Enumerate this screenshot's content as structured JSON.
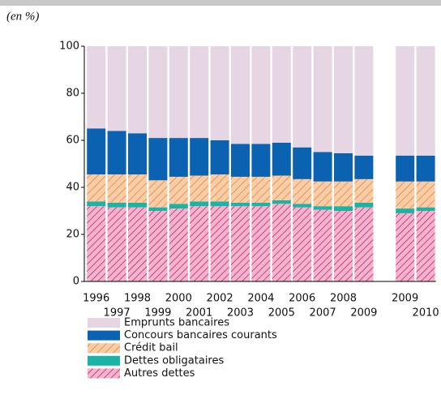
{
  "chart_data": {
    "type": "stacked_bar",
    "subtitle": "(en %)",
    "categories": [
      "1996",
      "1997",
      "1998",
      "1999",
      "2000",
      "2001",
      "2002",
      "2003",
      "2004",
      "2005",
      "2006",
      "2007",
      "2008",
      "2009",
      null,
      "2009",
      "2010"
    ],
    "series": [
      {
        "name": "Autres dettes",
        "color": "#f4b3cf",
        "hatch": "#c42a63",
        "values": [
          32,
          31.5,
          31.5,
          30,
          31,
          32,
          32,
          32,
          32,
          33,
          31.5,
          30.5,
          30,
          31.5,
          null,
          29,
          30
        ]
      },
      {
        "name": "Dettes obligataires",
        "color": "#1ab3a6",
        "values": [
          2,
          2,
          2,
          1.5,
          2,
          2,
          2,
          1.5,
          1.5,
          1.5,
          1.5,
          1.5,
          2,
          2,
          null,
          2,
          1.5
        ]
      },
      {
        "name": "Crédit bail",
        "color": "#f9cda5",
        "hatch": "#e8793a",
        "values": [
          11.5,
          12,
          12,
          11.5,
          11.5,
          11,
          11.5,
          11,
          11,
          10.5,
          10.5,
          10.5,
          10.5,
          10,
          null,
          11.5,
          11
        ]
      },
      {
        "name": "Concours bancaires courants",
        "color": "#0a62b0",
        "values": [
          19.5,
          18.5,
          17.5,
          18,
          16.5,
          16,
          14.5,
          14,
          14,
          14,
          13.5,
          12.5,
          12,
          10,
          null,
          11,
          11
        ]
      },
      {
        "name": "Emprunts bancaires",
        "color": "#e6d6e4",
        "values": [
          35,
          36,
          37,
          39,
          39,
          39,
          40,
          41.5,
          41.5,
          41,
          43,
          45,
          45.5,
          46.5,
          null,
          46.5,
          46.5
        ]
      }
    ],
    "ylim": [
      0,
      100
    ],
    "yticks": [
      0,
      20,
      40,
      60,
      80,
      100
    ]
  }
}
